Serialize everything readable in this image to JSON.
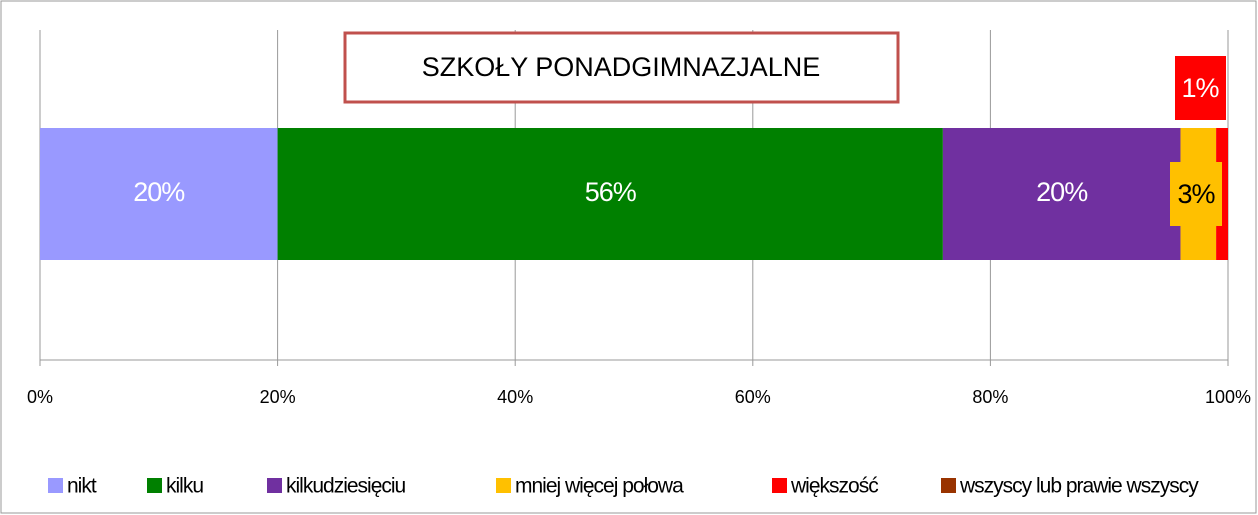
{
  "chart_data": {
    "type": "stacked-barh",
    "title": "SZKOŁY PONADGIMNAZJALNE",
    "series": [
      {
        "name": "nikt",
        "color": "#9999ff",
        "values": [
          20
        ],
        "value_labels": [
          "20%"
        ]
      },
      {
        "name": "kilku",
        "color": "#008000",
        "values": [
          56
        ],
        "value_labels": [
          "56%"
        ]
      },
      {
        "name": "kilkudziesięciu",
        "color": "#7030a0",
        "values": [
          20
        ],
        "value_labels": [
          "20%"
        ]
      },
      {
        "name": "mniej więcej połowa",
        "color": "#ffc000",
        "values": [
          3
        ],
        "value_labels": [
          "3%"
        ]
      },
      {
        "name": "większość",
        "color": "#ff0000",
        "values": [
          1
        ],
        "value_labels": [
          "1%"
        ]
      },
      {
        "name": "wszyscy lub prawie wszyscy",
        "color": "#993300",
        "values": [
          0
        ]
      }
    ],
    "xlim": [
      0,
      100
    ],
    "xticks": [
      {
        "value": 0,
        "label": "0%"
      },
      {
        "value": 20,
        "label": "20%"
      },
      {
        "value": 40,
        "label": "40%"
      },
      {
        "value": 60,
        "label": "60%"
      },
      {
        "value": 80,
        "label": "80%"
      },
      {
        "value": 100,
        "label": "100%"
      }
    ],
    "grid": true,
    "legend": "bottom"
  }
}
